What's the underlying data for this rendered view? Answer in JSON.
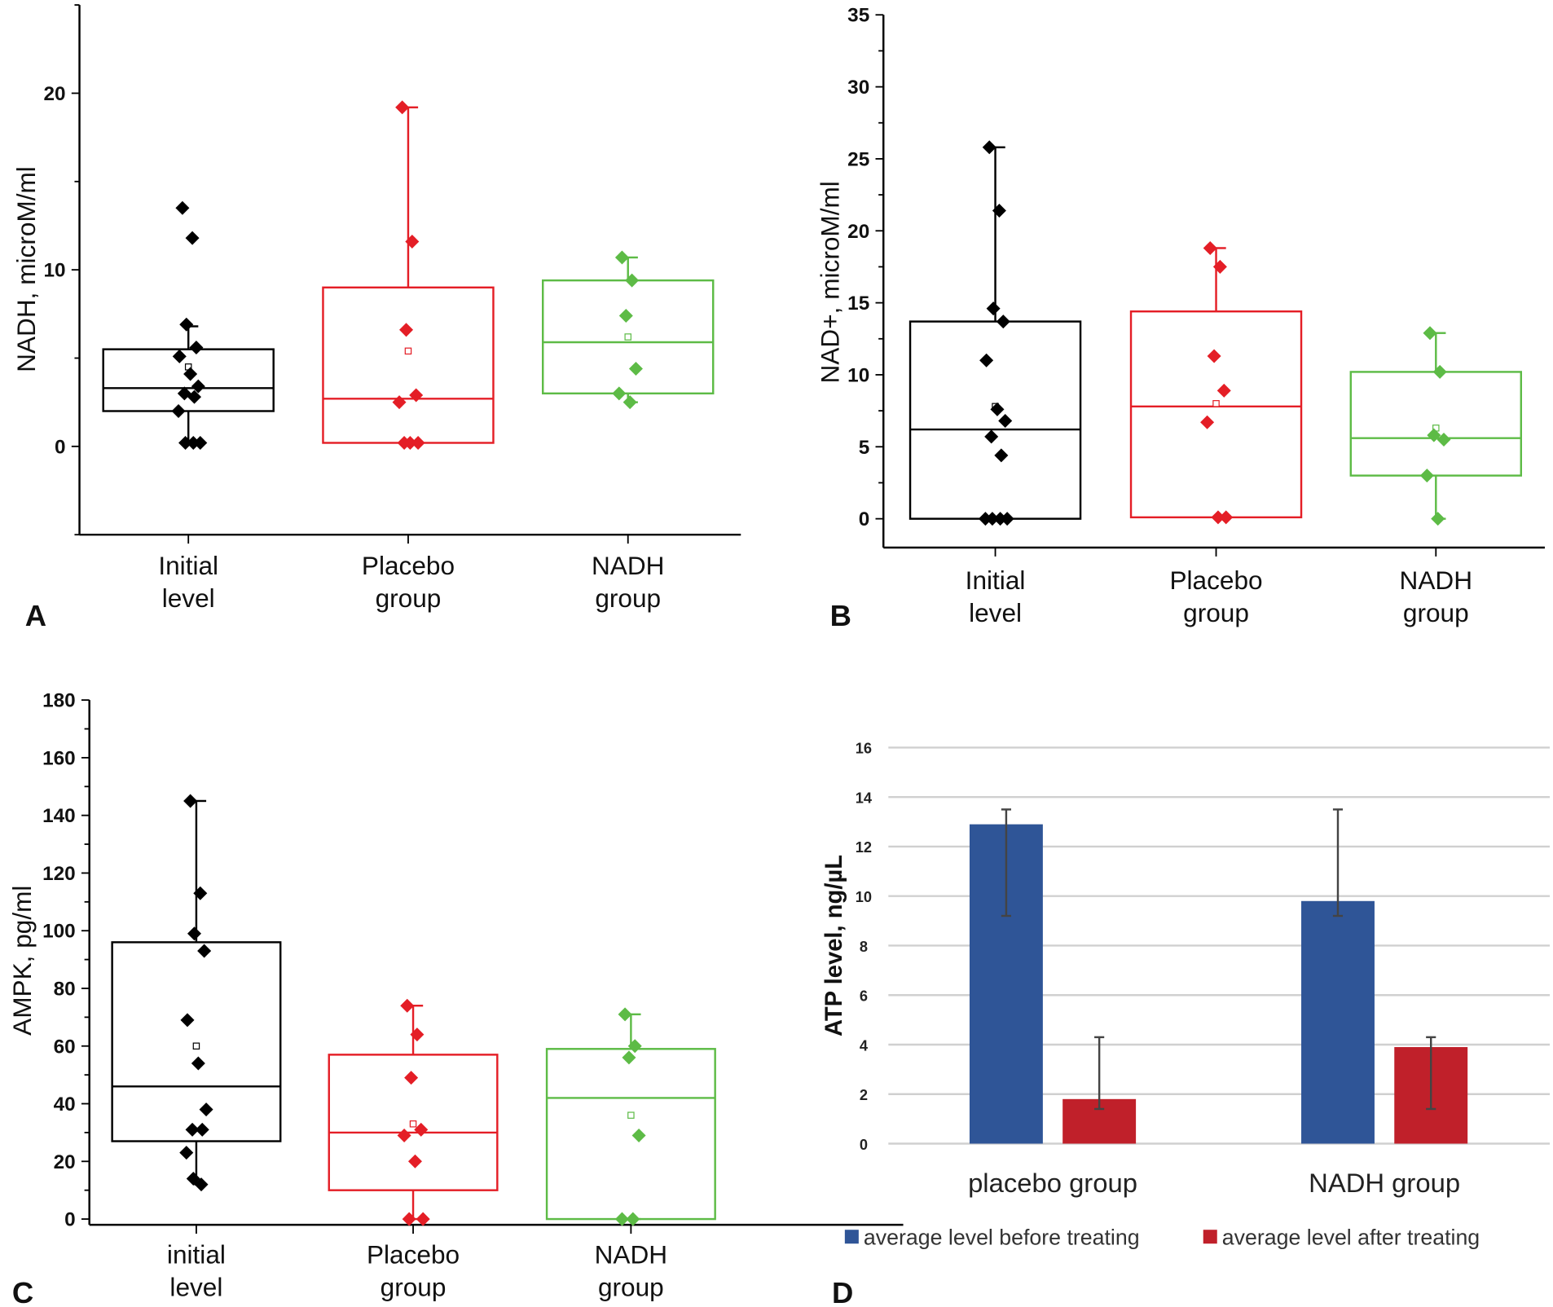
{
  "chart_data": [
    {
      "panel": "A",
      "type": "box",
      "ylabel": "NADH, microM/ml",
      "ylim": [
        -5,
        25
      ],
      "yticks": [
        0,
        10,
        20
      ],
      "categories": [
        [
          "Initial",
          "level"
        ],
        [
          "Placebo",
          "group"
        ],
        [
          "NADH",
          "group"
        ]
      ],
      "colors": [
        "#000000",
        "#e41e26",
        "#5dbb46"
      ],
      "boxes": [
        {
          "q1": 2.0,
          "median": 3.3,
          "q3": 5.5,
          "mean": 4.5,
          "whisker_low": 0.2,
          "whisker_high": 6.8,
          "points": [
            13.5,
            11.8,
            6.9,
            5.6,
            5.1,
            4.1,
            3.4,
            3.0,
            2.8,
            2.0,
            0.2,
            0.2,
            0.2
          ]
        },
        {
          "q1": 0.2,
          "median": 2.7,
          "q3": 9.0,
          "mean": 5.4,
          "whisker_low": 0.2,
          "whisker_high": 19.2,
          "points": [
            19.2,
            11.6,
            6.6,
            2.9,
            2.5,
            0.2,
            0.2,
            0.2
          ]
        },
        {
          "q1": 3.0,
          "median": 5.9,
          "q3": 9.4,
          "mean": 6.2,
          "whisker_low": 2.5,
          "whisker_high": 10.7,
          "points": [
            10.7,
            9.4,
            7.4,
            4.4,
            3.0,
            2.5
          ]
        }
      ]
    },
    {
      "panel": "B",
      "type": "box",
      "ylabel": "NAD+, microM/ml",
      "ylim": [
        -2,
        35
      ],
      "yticks": [
        0,
        5,
        10,
        15,
        20,
        25,
        30,
        35
      ],
      "categories": [
        [
          "Initial",
          "level"
        ],
        [
          "Placebo",
          "group"
        ],
        [
          "NADH",
          "group"
        ]
      ],
      "colors": [
        "#000000",
        "#e41e26",
        "#5dbb46"
      ],
      "boxes": [
        {
          "q1": 0,
          "median": 6.2,
          "q3": 13.7,
          "mean": 7.8,
          "whisker_low": 0,
          "whisker_high": 25.8,
          "points": [
            25.8,
            21.4,
            14.6,
            13.7,
            11.0,
            7.6,
            6.8,
            5.7,
            4.4,
            0,
            0,
            0,
            0
          ]
        },
        {
          "q1": 0.1,
          "median": 7.8,
          "q3": 14.4,
          "mean": 8.0,
          "whisker_low": 0.1,
          "whisker_high": 18.8,
          "points": [
            18.8,
            17.5,
            11.3,
            8.9,
            6.7,
            0.1,
            0.1
          ]
        },
        {
          "q1": 3.0,
          "median": 5.6,
          "q3": 10.2,
          "mean": 6.3,
          "whisker_low": 0,
          "whisker_high": 12.9,
          "points": [
            12.9,
            10.2,
            5.8,
            5.5,
            3.0,
            0
          ]
        }
      ]
    },
    {
      "panel": "C",
      "type": "box",
      "ylabel": "AMPK, pg/ml",
      "ylim": [
        -2,
        180
      ],
      "yticks": [
        0,
        20,
        40,
        60,
        80,
        100,
        120,
        140,
        160,
        180
      ],
      "categories": [
        [
          "initial",
          "level"
        ],
        [
          "Placebo",
          "group"
        ],
        [
          "NADH",
          "group"
        ]
      ],
      "colors": [
        "#000000",
        "#e41e26",
        "#5dbb46"
      ],
      "boxes": [
        {
          "q1": 27,
          "median": 46,
          "q3": 96,
          "mean": 60,
          "whisker_low": 12,
          "whisker_high": 145,
          "points": [
            145,
            113,
            99,
            93,
            69,
            54,
            38,
            31,
            31,
            23,
            14,
            12
          ]
        },
        {
          "q1": 10,
          "median": 30,
          "q3": 57,
          "mean": 33,
          "whisker_low": 0,
          "whisker_high": 74,
          "points": [
            74,
            64,
            49,
            31,
            29,
            20,
            0,
            0
          ]
        },
        {
          "q1": 0,
          "median": 42,
          "q3": 59,
          "mean": 36,
          "whisker_low": 0,
          "whisker_high": 71,
          "points": [
            71,
            60,
            56,
            29,
            0,
            0
          ]
        }
      ]
    },
    {
      "panel": "D",
      "type": "bar",
      "ylabel": "ATP level, ng/µL",
      "ylim": [
        0,
        16
      ],
      "yticks": [
        0,
        2,
        4,
        6,
        8,
        10,
        12,
        14,
        16
      ],
      "grid": true,
      "legend_position": "bottom",
      "categories": [
        "placebo group",
        "NADH group"
      ],
      "series": [
        {
          "name": "average level before treating",
          "color": "#2f5597",
          "values": [
            12.9,
            9.8
          ],
          "error_low": [
            9.2,
            9.2
          ],
          "error_high": [
            13.5,
            13.5
          ]
        },
        {
          "name": "average level after treating",
          "color": "#c0202a",
          "values": [
            1.8,
            3.9
          ],
          "error_low": [
            1.4,
            1.4
          ],
          "error_high": [
            4.3,
            4.3
          ]
        }
      ]
    }
  ]
}
